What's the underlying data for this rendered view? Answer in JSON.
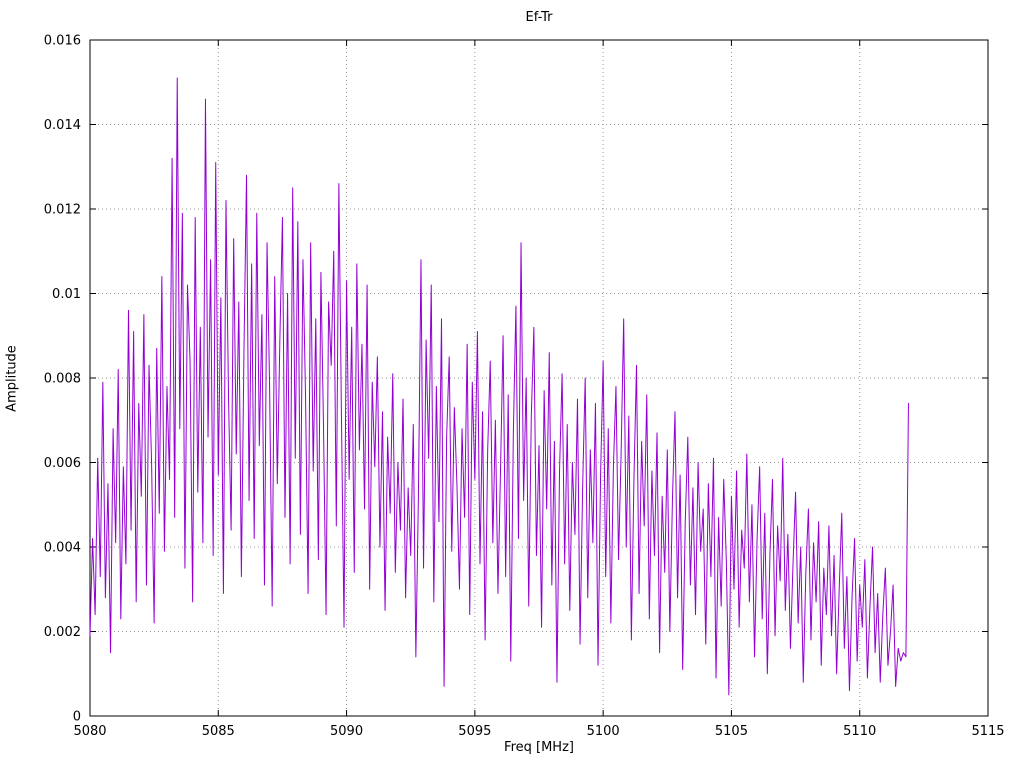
{
  "chart_data": {
    "type": "line",
    "title": "Ef-Tr",
    "xlabel": "Freq [MHz]",
    "ylabel": "Amplitude",
    "xlim": [
      5080,
      5115
    ],
    "ylim": [
      0,
      0.016
    ],
    "grid": true,
    "legend": "none",
    "line_color": "#9400d3",
    "grid_color": "#9a9a9a",
    "x_ticks": [
      5080,
      5085,
      5090,
      5095,
      5100,
      5105,
      5110,
      5115
    ],
    "x_tick_labels": [
      "5080",
      "5085",
      "5090",
      "5095",
      "5100",
      "5105",
      "5110",
      "5115"
    ],
    "y_ticks": [
      0,
      0.002,
      0.004,
      0.006,
      0.008,
      0.01,
      0.012,
      0.014,
      0.016
    ],
    "y_tick_labels": [
      "0",
      "0.002",
      "0.004",
      "0.006",
      "0.008",
      "0.01",
      "0.012",
      "0.014",
      "0.016"
    ],
    "series": [
      {
        "name": "Ef-Tr",
        "x_start": 5080.0,
        "x_step": 0.1,
        "values": [
          0.0019,
          0.0042,
          0.0024,
          0.0061,
          0.0033,
          0.0079,
          0.0028,
          0.0055,
          0.0015,
          0.0068,
          0.0041,
          0.0082,
          0.0023,
          0.0059,
          0.0036,
          0.0096,
          0.0044,
          0.0091,
          0.0027,
          0.0074,
          0.0052,
          0.0095,
          0.0031,
          0.0083,
          0.006,
          0.0022,
          0.0087,
          0.0048,
          0.0104,
          0.0039,
          0.0078,
          0.0056,
          0.0132,
          0.0047,
          0.0151,
          0.0068,
          0.0119,
          0.0035,
          0.0102,
          0.0084,
          0.0027,
          0.0118,
          0.0053,
          0.0092,
          0.0041,
          0.0146,
          0.0066,
          0.0108,
          0.0038,
          0.0131,
          0.0057,
          0.0099,
          0.0029,
          0.0122,
          0.0075,
          0.0044,
          0.0113,
          0.0062,
          0.0098,
          0.0033,
          0.0086,
          0.0128,
          0.0051,
          0.0107,
          0.0042,
          0.0119,
          0.0064,
          0.0095,
          0.0031,
          0.0112,
          0.0078,
          0.0026,
          0.0104,
          0.0055,
          0.0089,
          0.0118,
          0.0047,
          0.01,
          0.0036,
          0.0125,
          0.0061,
          0.0117,
          0.0043,
          0.0108,
          0.0076,
          0.0029,
          0.0112,
          0.0058,
          0.0094,
          0.0037,
          0.0105,
          0.0069,
          0.0024,
          0.0098,
          0.0083,
          0.011,
          0.0045,
          0.0126,
          0.0071,
          0.0021,
          0.0103,
          0.0056,
          0.0092,
          0.0034,
          0.0107,
          0.0063,
          0.0088,
          0.0049,
          0.0102,
          0.003,
          0.0079,
          0.0059,
          0.0085,
          0.004,
          0.0072,
          0.0025,
          0.0066,
          0.0048,
          0.0081,
          0.0034,
          0.006,
          0.0044,
          0.0075,
          0.0028,
          0.0054,
          0.0038,
          0.0069,
          0.0014,
          0.0052,
          0.0108,
          0.0035,
          0.0089,
          0.0061,
          0.0102,
          0.0027,
          0.0078,
          0.0046,
          0.0094,
          0.0007,
          0.0066,
          0.0085,
          0.0039,
          0.0073,
          0.0055,
          0.003,
          0.0068,
          0.0047,
          0.0088,
          0.0024,
          0.0079,
          0.0056,
          0.0091,
          0.0036,
          0.0072,
          0.0018,
          0.0063,
          0.0084,
          0.0041,
          0.007,
          0.0029,
          0.0058,
          0.009,
          0.0033,
          0.0076,
          0.0013,
          0.0067,
          0.0097,
          0.0042,
          0.0112,
          0.0051,
          0.008,
          0.0026,
          0.0071,
          0.0092,
          0.0038,
          0.0064,
          0.0021,
          0.0077,
          0.0049,
          0.0086,
          0.0031,
          0.0065,
          0.0008,
          0.0058,
          0.0081,
          0.0036,
          0.0069,
          0.0025,
          0.006,
          0.0043,
          0.0075,
          0.0017,
          0.0054,
          0.008,
          0.0028,
          0.0063,
          0.0041,
          0.0074,
          0.0012,
          0.0057,
          0.0084,
          0.0033,
          0.0068,
          0.0022,
          0.0059,
          0.0078,
          0.0037,
          0.0062,
          0.0094,
          0.004,
          0.0071,
          0.0018,
          0.0056,
          0.0083,
          0.0029,
          0.0065,
          0.0045,
          0.0076,
          0.0023,
          0.0058,
          0.0038,
          0.0067,
          0.0015,
          0.0052,
          0.0034,
          0.0063,
          0.002,
          0.0051,
          0.0072,
          0.0028,
          0.0057,
          0.0011,
          0.0046,
          0.0066,
          0.0031,
          0.0054,
          0.0024,
          0.006,
          0.0039,
          0.0049,
          0.0017,
          0.0055,
          0.0033,
          0.0061,
          0.0009,
          0.0047,
          0.0026,
          0.0056,
          0.0037,
          0.0005,
          0.0052,
          0.003,
          0.0058,
          0.0021,
          0.0044,
          0.0035,
          0.0062,
          0.0027,
          0.005,
          0.0014,
          0.0042,
          0.0059,
          0.0023,
          0.0048,
          0.001,
          0.0038,
          0.0056,
          0.0019,
          0.0045,
          0.0032,
          0.0061,
          0.0025,
          0.0043,
          0.0016,
          0.0036,
          0.0053,
          0.0022,
          0.004,
          0.0008,
          0.0034,
          0.0049,
          0.0018,
          0.0041,
          0.0027,
          0.0046,
          0.0012,
          0.0035,
          0.0024,
          0.0045,
          0.0019,
          0.0038,
          0.001,
          0.003,
          0.0048,
          0.0016,
          0.0033,
          0.0006,
          0.0028,
          0.0042,
          0.0013,
          0.0031,
          0.0021,
          0.0037,
          0.0009,
          0.0026,
          0.004,
          0.0015,
          0.0029,
          0.0008,
          0.0024,
          0.0035,
          0.0012,
          0.002,
          0.0031,
          0.0007,
          0.0016,
          0.0013,
          0.0015,
          0.0014,
          0.0074
        ]
      }
    ]
  }
}
